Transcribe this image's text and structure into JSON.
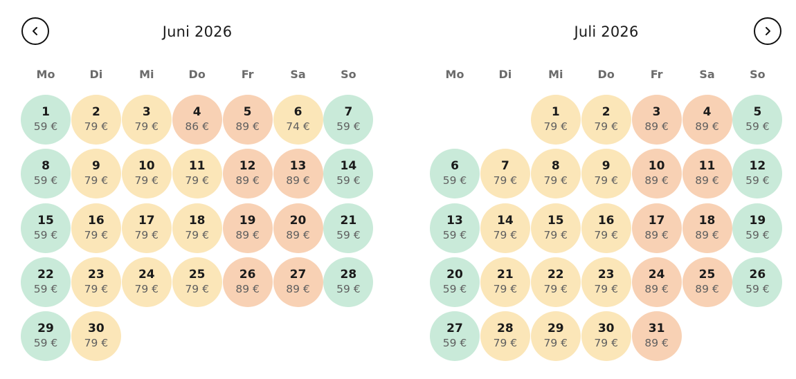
{
  "nav": {
    "prev_icon": "chevron-left-icon",
    "next_icon": "chevron-right-icon"
  },
  "colors": {
    "green": "#c9ead9",
    "yellow": "#fbe6b8",
    "orange": "#f8d1b4"
  },
  "weekdays": [
    "Mo",
    "Di",
    "Mi",
    "Do",
    "Fr",
    "Sa",
    "So"
  ],
  "months": [
    {
      "title": "Juni 2026",
      "start_weekday": 0,
      "days": [
        {
          "day": "1",
          "price": "59 €",
          "level": "green"
        },
        {
          "day": "2",
          "price": "79 €",
          "level": "yellow"
        },
        {
          "day": "3",
          "price": "79 €",
          "level": "yellow"
        },
        {
          "day": "4",
          "price": "86 €",
          "level": "orange"
        },
        {
          "day": "5",
          "price": "89 €",
          "level": "orange"
        },
        {
          "day": "6",
          "price": "74 €",
          "level": "yellow"
        },
        {
          "day": "7",
          "price": "59 €",
          "level": "green"
        },
        {
          "day": "8",
          "price": "59 €",
          "level": "green"
        },
        {
          "day": "9",
          "price": "79 €",
          "level": "yellow"
        },
        {
          "day": "10",
          "price": "79 €",
          "level": "yellow"
        },
        {
          "day": "11",
          "price": "79 €",
          "level": "yellow"
        },
        {
          "day": "12",
          "price": "89 €",
          "level": "orange"
        },
        {
          "day": "13",
          "price": "89 €",
          "level": "orange"
        },
        {
          "day": "14",
          "price": "59 €",
          "level": "green"
        },
        {
          "day": "15",
          "price": "59 €",
          "level": "green"
        },
        {
          "day": "16",
          "price": "79 €",
          "level": "yellow"
        },
        {
          "day": "17",
          "price": "79 €",
          "level": "yellow"
        },
        {
          "day": "18",
          "price": "79 €",
          "level": "yellow"
        },
        {
          "day": "19",
          "price": "89 €",
          "level": "orange"
        },
        {
          "day": "20",
          "price": "89 €",
          "level": "orange"
        },
        {
          "day": "21",
          "price": "59 €",
          "level": "green"
        },
        {
          "day": "22",
          "price": "59 €",
          "level": "green"
        },
        {
          "day": "23",
          "price": "79 €",
          "level": "yellow"
        },
        {
          "day": "24",
          "price": "79 €",
          "level": "yellow"
        },
        {
          "day": "25",
          "price": "79 €",
          "level": "yellow"
        },
        {
          "day": "26",
          "price": "89 €",
          "level": "orange"
        },
        {
          "day": "27",
          "price": "89 €",
          "level": "orange"
        },
        {
          "day": "28",
          "price": "59 €",
          "level": "green"
        },
        {
          "day": "29",
          "price": "59 €",
          "level": "green"
        },
        {
          "day": "30",
          "price": "79 €",
          "level": "yellow"
        }
      ]
    },
    {
      "title": "Juli 2026",
      "start_weekday": 2,
      "days": [
        {
          "day": "1",
          "price": "79 €",
          "level": "yellow"
        },
        {
          "day": "2",
          "price": "79 €",
          "level": "yellow"
        },
        {
          "day": "3",
          "price": "89 €",
          "level": "orange"
        },
        {
          "day": "4",
          "price": "89 €",
          "level": "orange"
        },
        {
          "day": "5",
          "price": "59 €",
          "level": "green"
        },
        {
          "day": "6",
          "price": "59 €",
          "level": "green"
        },
        {
          "day": "7",
          "price": "79 €",
          "level": "yellow"
        },
        {
          "day": "8",
          "price": "79 €",
          "level": "yellow"
        },
        {
          "day": "9",
          "price": "79 €",
          "level": "yellow"
        },
        {
          "day": "10",
          "price": "89 €",
          "level": "orange"
        },
        {
          "day": "11",
          "price": "89 €",
          "level": "orange"
        },
        {
          "day": "12",
          "price": "59 €",
          "level": "green"
        },
        {
          "day": "13",
          "price": "59 €",
          "level": "green"
        },
        {
          "day": "14",
          "price": "79 €",
          "level": "yellow"
        },
        {
          "day": "15",
          "price": "79 €",
          "level": "yellow"
        },
        {
          "day": "16",
          "price": "79 €",
          "level": "yellow"
        },
        {
          "day": "17",
          "price": "89 €",
          "level": "orange"
        },
        {
          "day": "18",
          "price": "89 €",
          "level": "orange"
        },
        {
          "day": "19",
          "price": "59 €",
          "level": "green"
        },
        {
          "day": "20",
          "price": "59 €",
          "level": "green"
        },
        {
          "day": "21",
          "price": "79 €",
          "level": "yellow"
        },
        {
          "day": "22",
          "price": "79 €",
          "level": "yellow"
        },
        {
          "day": "23",
          "price": "79 €",
          "level": "yellow"
        },
        {
          "day": "24",
          "price": "89 €",
          "level": "orange"
        },
        {
          "day": "25",
          "price": "89 €",
          "level": "orange"
        },
        {
          "day": "26",
          "price": "59 €",
          "level": "green"
        },
        {
          "day": "27",
          "price": "59 €",
          "level": "green"
        },
        {
          "day": "28",
          "price": "79 €",
          "level": "yellow"
        },
        {
          "day": "29",
          "price": "79 €",
          "level": "yellow"
        },
        {
          "day": "30",
          "price": "79 €",
          "level": "yellow"
        },
        {
          "day": "31",
          "price": "89 €",
          "level": "orange"
        }
      ]
    }
  ]
}
